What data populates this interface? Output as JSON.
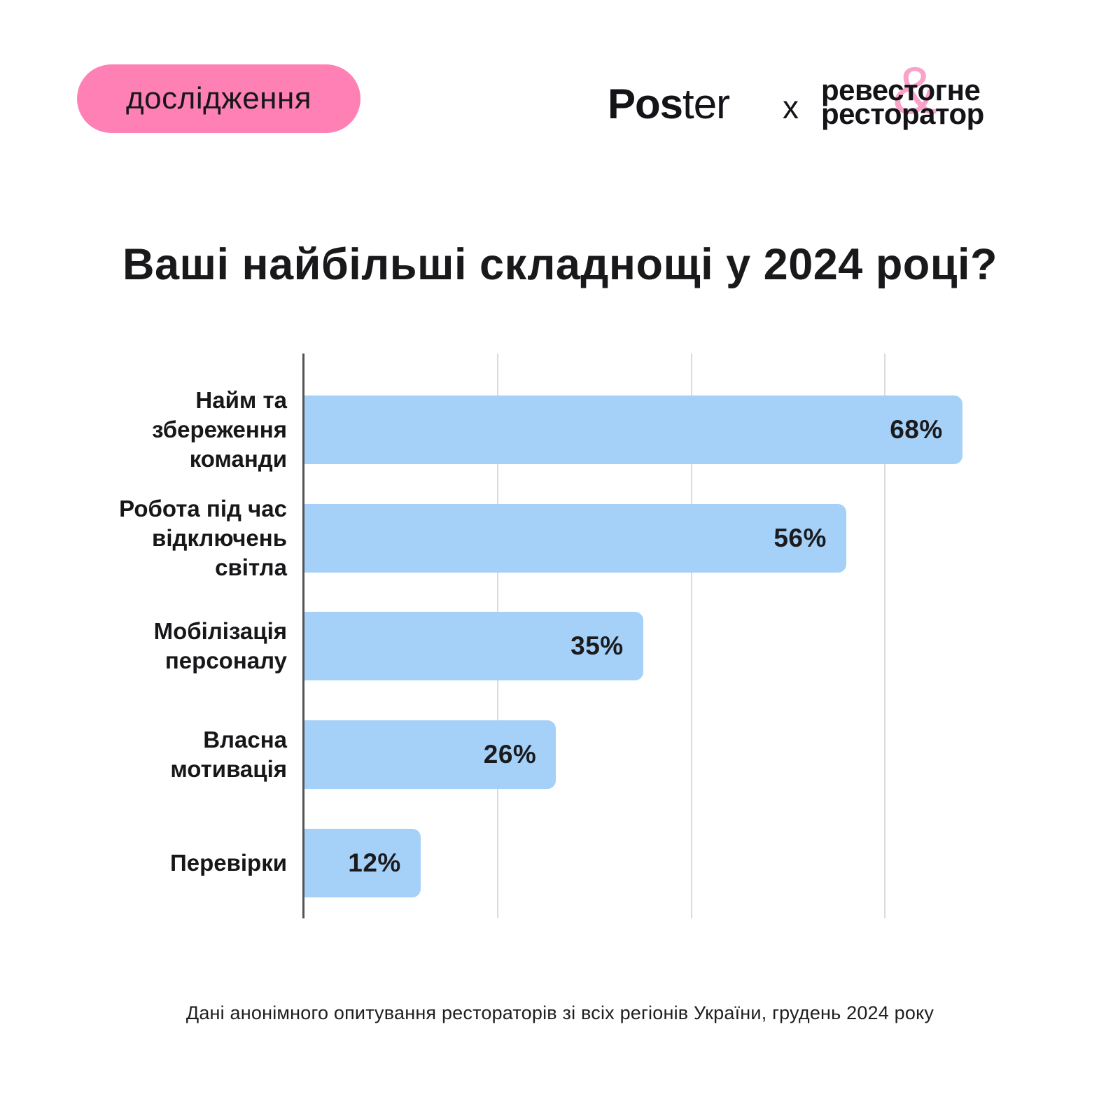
{
  "badge": {
    "label": "дослідження"
  },
  "header": {
    "poster_logo": {
      "bold": "Pos",
      "light": "ter"
    },
    "separator": "x",
    "partner_logo": {
      "line1_left": "реве",
      "amp": "&",
      "line1_right": "стогне",
      "line2": "ресторатор"
    }
  },
  "title": "Ваші найбільші складнощі у 2024 році?",
  "chart_data": {
    "type": "bar",
    "orientation": "horizontal",
    "title": "Ваші найбільші складнощі у 2024 році?",
    "categories": [
      "Найм та\nзбереження\nкоманди",
      "Робота під час\nвідключень\nсвітла",
      "Мобілізація\nперсоналу",
      "Власна\nмотивація",
      "Перевірки"
    ],
    "values": [
      68,
      56,
      35,
      26,
      12
    ],
    "value_labels": [
      "68%",
      "56%",
      "35%",
      "26%",
      "12%"
    ],
    "xlim": [
      0,
      72
    ],
    "grid_ticks": [
      20,
      40,
      60
    ],
    "grid_visible": true,
    "legend": "none",
    "bar_color": "#A5D1F9",
    "value_label_color": "#1B1B1E",
    "axis_color": "#545456",
    "gridline_color": "#DBDBDB"
  },
  "footer": {
    "note": "Дані анонімного опитування рестораторів зі всіх регіонів України, грудень 2024 року"
  },
  "colors": {
    "background": "#FFFFFF",
    "badge_pink": "#FF80B5",
    "amp_pink": "#F9A3CA",
    "text_dark": "#19191C"
  }
}
